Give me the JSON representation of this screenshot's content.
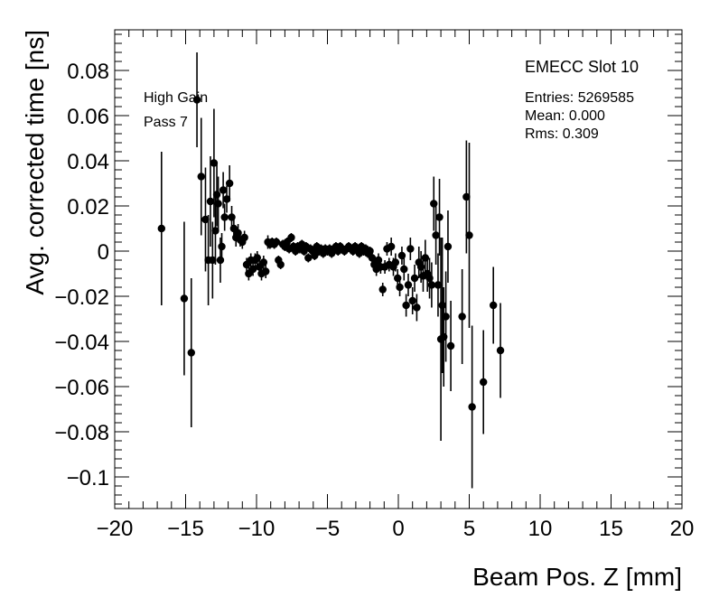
{
  "chart_data": {
    "type": "scatter",
    "xlabel": "Beam Pos. Z [mm]",
    "ylabel": "Avg. corrected time [ns]",
    "xlim": [
      -20,
      20
    ],
    "ylim": [
      -0.114,
      0.098
    ],
    "x_ticks": [
      -20,
      -15,
      -10,
      -5,
      0,
      5,
      10,
      15,
      20
    ],
    "x_tick_labels": [
      "−20",
      "−15",
      "−10",
      "−5",
      "0",
      "5",
      "10",
      "15",
      "20"
    ],
    "y_ticks": [
      -0.1,
      -0.08,
      -0.06,
      -0.04,
      -0.02,
      0,
      0.02,
      0.04,
      0.06,
      0.08
    ],
    "y_tick_labels": [
      "−0.1",
      "−0.08",
      "−0.06",
      "−0.04",
      "−0.02",
      "0",
      "0.02",
      "0.04",
      "0.06",
      "0.08"
    ],
    "grid": false,
    "legend": "none",
    "annotations": [
      "High Gain",
      "Pass 7"
    ],
    "stats_box": {
      "title": "EMECC Slot 10",
      "lines": [
        "Entries: 5269585",
        "Mean: 0.000",
        "Rms: 0.309"
      ]
    },
    "marker_color": "#000000",
    "points": [
      {
        "x": -16.7,
        "y": 0.01,
        "err": 0.034
      },
      {
        "x": -15.1,
        "y": -0.021,
        "err": 0.034
      },
      {
        "x": -14.6,
        "y": -0.045,
        "err": 0.033
      },
      {
        "x": -14.2,
        "y": 0.067,
        "err": 0.021
      },
      {
        "x": -13.9,
        "y": 0.033,
        "err": 0.026
      },
      {
        "x": -13.6,
        "y": 0.014,
        "err": 0.023
      },
      {
        "x": -13.4,
        "y": -0.004,
        "err": 0.02
      },
      {
        "x": -13.25,
        "y": 0.022,
        "err": 0.02
      },
      {
        "x": -13.1,
        "y": -0.004,
        "err": 0.017
      },
      {
        "x": -13.0,
        "y": 0.039,
        "err": 0.024
      },
      {
        "x": -12.9,
        "y": 0.009,
        "err": 0.015
      },
      {
        "x": -12.8,
        "y": 0.025,
        "err": 0.014
      },
      {
        "x": -12.7,
        "y": 0.021,
        "err": 0.012
      },
      {
        "x": -12.55,
        "y": -0.004,
        "err": 0.01
      },
      {
        "x": -12.45,
        "y": 0.002,
        "err": 0.006
      },
      {
        "x": -12.35,
        "y": 0.027,
        "err": 0.008
      },
      {
        "x": -12.25,
        "y": 0.015,
        "err": 0.006
      },
      {
        "x": -12.1,
        "y": 0.023,
        "err": 0.006
      },
      {
        "x": -11.9,
        "y": 0.03,
        "err": 0.008
      },
      {
        "x": -11.75,
        "y": 0.015,
        "err": 0.005
      },
      {
        "x": -11.6,
        "y": 0.01,
        "err": 0.004
      },
      {
        "x": -11.45,
        "y": 0.006,
        "err": 0.004
      },
      {
        "x": -11.3,
        "y": 0.008,
        "err": 0.004
      },
      {
        "x": -11.15,
        "y": 0.005,
        "err": 0.003
      },
      {
        "x": -11.0,
        "y": 0.004,
        "err": 0.003
      },
      {
        "x": -10.85,
        "y": 0.006,
        "err": 0.003
      },
      {
        "x": -10.7,
        "y": -0.006,
        "err": 0.003
      },
      {
        "x": -10.55,
        "y": -0.01,
        "err": 0.003
      },
      {
        "x": -10.4,
        "y": -0.004,
        "err": 0.003
      },
      {
        "x": -10.25,
        "y": -0.008,
        "err": 0.003
      },
      {
        "x": -10.1,
        "y": -0.004,
        "err": 0.003
      },
      {
        "x": -9.95,
        "y": -0.003,
        "err": 0.003
      },
      {
        "x": -9.8,
        "y": -0.007,
        "err": 0.003
      },
      {
        "x": -9.65,
        "y": -0.01,
        "err": 0.003
      },
      {
        "x": -9.5,
        "y": -0.005,
        "err": 0.003
      },
      {
        "x": -9.35,
        "y": -0.009,
        "err": 0.003
      },
      {
        "x": -9.2,
        "y": 0.004,
        "err": 0.003
      },
      {
        "x": -9.05,
        "y": 0.003,
        "err": 0.002
      },
      {
        "x": -8.9,
        "y": 0.004,
        "err": 0.002
      },
      {
        "x": -8.75,
        "y": 0.003,
        "err": 0.002
      },
      {
        "x": -8.6,
        "y": 0.004,
        "err": 0.002
      },
      {
        "x": -8.45,
        "y": -0.004,
        "err": 0.002
      },
      {
        "x": -8.3,
        "y": -0.006,
        "err": 0.002
      },
      {
        "x": -8.15,
        "y": 0.003,
        "err": 0.002
      },
      {
        "x": -8.0,
        "y": 0.002,
        "err": 0.002
      },
      {
        "x": -7.85,
        "y": 0.004,
        "err": 0.002
      },
      {
        "x": -7.7,
        "y": 0.001,
        "err": 0.002
      },
      {
        "x": -7.55,
        "y": 0.006,
        "err": 0.002
      },
      {
        "x": -7.4,
        "y": 0.002,
        "err": 0.002
      },
      {
        "x": -7.25,
        "y": 0.0,
        "err": 0.002
      },
      {
        "x": -7.1,
        "y": 0.002,
        "err": 0.002
      },
      {
        "x": -6.95,
        "y": 0.001,
        "err": 0.002
      },
      {
        "x": -6.8,
        "y": 0.003,
        "err": 0.002
      },
      {
        "x": -6.65,
        "y": 0.0,
        "err": 0.002
      },
      {
        "x": -6.5,
        "y": 0.002,
        "err": 0.002
      },
      {
        "x": -6.35,
        "y": -0.003,
        "err": 0.002
      },
      {
        "x": -6.2,
        "y": 0.001,
        "err": 0.002
      },
      {
        "x": -6.05,
        "y": 0.0,
        "err": 0.002
      },
      {
        "x": -5.9,
        "y": -0.002,
        "err": 0.002
      },
      {
        "x": -5.75,
        "y": 0.002,
        "err": 0.002
      },
      {
        "x": -5.6,
        "y": 0.0,
        "err": 0.002
      },
      {
        "x": -5.45,
        "y": 0.001,
        "err": 0.002
      },
      {
        "x": -5.3,
        "y": -0.001,
        "err": 0.002
      },
      {
        "x": -5.15,
        "y": 0.001,
        "err": 0.002
      },
      {
        "x": -5.0,
        "y": 0.0,
        "err": 0.002
      },
      {
        "x": -4.85,
        "y": 0.001,
        "err": 0.002
      },
      {
        "x": -4.7,
        "y": -0.001,
        "err": 0.002
      },
      {
        "x": -4.55,
        "y": 0.001,
        "err": 0.002
      },
      {
        "x": -4.4,
        "y": 0.002,
        "err": 0.002
      },
      {
        "x": -4.25,
        "y": 0.0,
        "err": 0.002
      },
      {
        "x": -4.1,
        "y": 0.002,
        "err": 0.002
      },
      {
        "x": -3.95,
        "y": 0.001,
        "err": 0.002
      },
      {
        "x": -3.8,
        "y": 0.0,
        "err": 0.002
      },
      {
        "x": -3.65,
        "y": 0.001,
        "err": 0.002
      },
      {
        "x": -3.5,
        "y": 0.002,
        "err": 0.002
      },
      {
        "x": -3.35,
        "y": 0.001,
        "err": 0.002
      },
      {
        "x": -3.2,
        "y": 0.0,
        "err": 0.002
      },
      {
        "x": -3.05,
        "y": 0.002,
        "err": 0.002
      },
      {
        "x": -2.9,
        "y": 0.001,
        "err": 0.002
      },
      {
        "x": -2.75,
        "y": -0.001,
        "err": 0.002
      },
      {
        "x": -2.6,
        "y": 0.002,
        "err": 0.002
      },
      {
        "x": -2.45,
        "y": 0.0,
        "err": 0.002
      },
      {
        "x": -2.3,
        "y": 0.001,
        "err": 0.002
      },
      {
        "x": -2.15,
        "y": -0.001,
        "err": 0.002
      },
      {
        "x": -2.0,
        "y": 0.0,
        "err": 0.002
      },
      {
        "x": -1.85,
        "y": -0.003,
        "err": 0.002
      },
      {
        "x": -1.7,
        "y": -0.006,
        "err": 0.002
      },
      {
        "x": -1.55,
        "y": -0.008,
        "err": 0.003
      },
      {
        "x": -1.4,
        "y": -0.004,
        "err": 0.003
      },
      {
        "x": -1.25,
        "y": -0.007,
        "err": 0.003
      },
      {
        "x": -1.1,
        "y": -0.017,
        "err": 0.003
      },
      {
        "x": -0.95,
        "y": -0.007,
        "err": 0.003
      },
      {
        "x": -0.8,
        "y": 0.001,
        "err": 0.003
      },
      {
        "x": -0.65,
        "y": -0.006,
        "err": 0.003
      },
      {
        "x": -0.5,
        "y": 0.002,
        "err": 0.004
      },
      {
        "x": -0.35,
        "y": -0.007,
        "err": 0.004
      },
      {
        "x": -0.2,
        "y": -0.005,
        "err": 0.004
      },
      {
        "x": -0.05,
        "y": -0.012,
        "err": 0.004
      },
      {
        "x": 0.1,
        "y": -0.016,
        "err": 0.004
      },
      {
        "x": 0.25,
        "y": -0.002,
        "err": 0.004
      },
      {
        "x": 0.4,
        "y": -0.008,
        "err": 0.005
      },
      {
        "x": 0.55,
        "y": -0.024,
        "err": 0.005
      },
      {
        "x": 0.7,
        "y": -0.015,
        "err": 0.005
      },
      {
        "x": 0.85,
        "y": 0.001,
        "err": 0.005
      },
      {
        "x": 1.0,
        "y": -0.022,
        "err": 0.006
      },
      {
        "x": 1.15,
        "y": -0.012,
        "err": 0.006
      },
      {
        "x": 1.3,
        "y": -0.025,
        "err": 0.006
      },
      {
        "x": 1.45,
        "y": -0.005,
        "err": 0.007
      },
      {
        "x": 1.6,
        "y": -0.007,
        "err": 0.007
      },
      {
        "x": 1.75,
        "y": -0.011,
        "err": 0.007
      },
      {
        "x": 1.9,
        "y": -0.003,
        "err": 0.008
      },
      {
        "x": 2.05,
        "y": -0.01,
        "err": 0.008
      },
      {
        "x": 2.2,
        "y": -0.012,
        "err": 0.009
      },
      {
        "x": 2.35,
        "y": -0.015,
        "err": 0.01
      },
      {
        "x": 2.5,
        "y": 0.021,
        "err": 0.012
      },
      {
        "x": 2.65,
        "y": 0.007,
        "err": 0.013
      },
      {
        "x": 2.8,
        "y": -0.015,
        "err": 0.014
      },
      {
        "x": 2.9,
        "y": 0.015,
        "err": 0.017
      },
      {
        "x": 3.0,
        "y": -0.039,
        "err": 0.045
      },
      {
        "x": 3.1,
        "y": -0.024,
        "err": 0.03
      },
      {
        "x": 3.2,
        "y": -0.038,
        "err": 0.022
      },
      {
        "x": 3.35,
        "y": -0.029,
        "err": 0.02
      },
      {
        "x": 3.5,
        "y": 0.002,
        "err": 0.016
      },
      {
        "x": 3.7,
        "y": -0.042,
        "err": 0.02
      },
      {
        "x": 4.5,
        "y": -0.029,
        "err": 0.021
      },
      {
        "x": 4.8,
        "y": 0.024,
        "err": 0.025
      },
      {
        "x": 5.0,
        "y": 0.007,
        "err": 0.041
      },
      {
        "x": 5.2,
        "y": -0.069,
        "err": 0.036
      },
      {
        "x": 6.0,
        "y": -0.058,
        "err": 0.023
      },
      {
        "x": 6.7,
        "y": -0.024,
        "err": 0.017
      },
      {
        "x": 7.2,
        "y": -0.044,
        "err": 0.021
      }
    ]
  }
}
